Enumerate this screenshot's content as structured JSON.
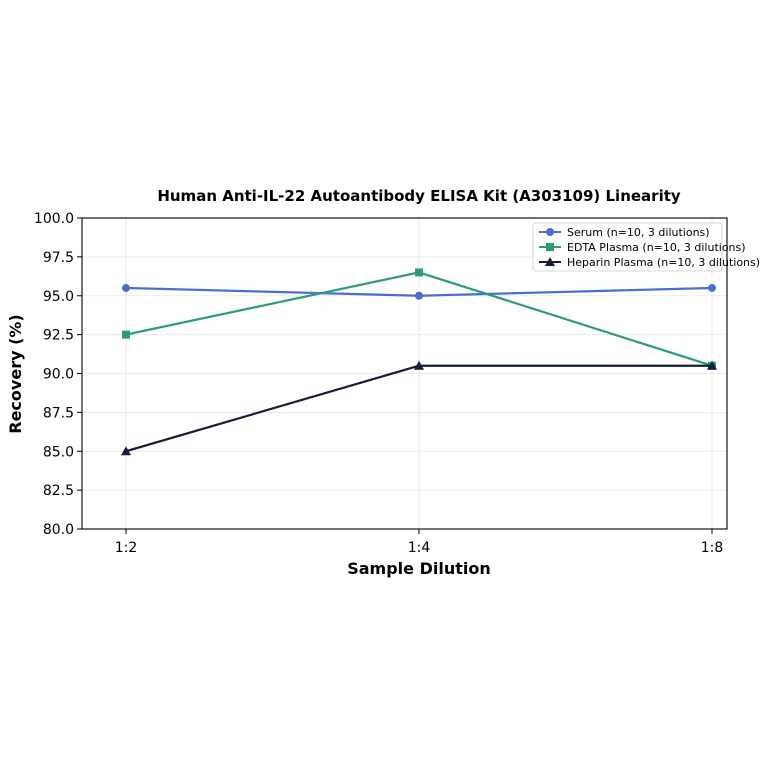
{
  "chart_data": {
    "type": "line",
    "title": "Human Anti-IL-22 Autoantibody ELISA Kit (A303109) Linearity",
    "xlabel": "Sample Dilution",
    "ylabel": "Recovery (%)",
    "categories": [
      "1:2",
      "1:4",
      "1:8"
    ],
    "ylim": [
      80.0,
      100.0
    ],
    "yticks": [
      "80.0",
      "82.5",
      "85.0",
      "87.5",
      "90.0",
      "92.5",
      "95.0",
      "97.5",
      "100.0"
    ],
    "grid": true,
    "legend_position": "top-right",
    "series": [
      {
        "name": "Serum (n=10, 3 dilutions)",
        "values": [
          95.5,
          95.0,
          95.5
        ],
        "color": "#4a6fd1",
        "marker": "circle"
      },
      {
        "name": "EDTA Plasma (n=10, 3 dilutions)",
        "values": [
          92.5,
          96.5,
          90.5
        ],
        "color": "#2a9d77",
        "marker": "square"
      },
      {
        "name": "Heparin Plasma (n=10, 3 dilutions)",
        "values": [
          85.0,
          90.5,
          90.5
        ],
        "color": "#141e3c",
        "marker": "triangle"
      }
    ]
  }
}
